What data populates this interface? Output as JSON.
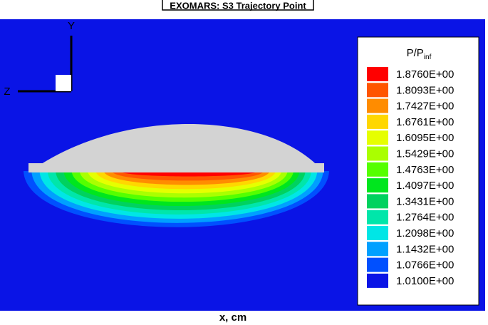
{
  "title": "EXOMARS: S3 Trajectory Point",
  "axes": {
    "y_label": "Y",
    "z_label": "Z",
    "x_label": "x, cm"
  },
  "legend": {
    "title": "P/P",
    "subscript": "inf",
    "levels": [
      {
        "label": "1.8760E+00",
        "color": "#ff0000"
      },
      {
        "label": "1.8093E+00",
        "color": "#ff5500"
      },
      {
        "label": "1.7427E+00",
        "color": "#ff8c00"
      },
      {
        "label": "1.6761E+00",
        "color": "#ffd700"
      },
      {
        "label": "1.6095E+00",
        "color": "#e6ff00"
      },
      {
        "label": "1.5429E+00",
        "color": "#aaff00"
      },
      {
        "label": "1.4763E+00",
        "color": "#55ff00"
      },
      {
        "label": "1.4097E+00",
        "color": "#00e61e"
      },
      {
        "label": "1.3431E+00",
        "color": "#00d25f"
      },
      {
        "label": "1.2764E+00",
        "color": "#00e6aa"
      },
      {
        "label": "1.2098E+00",
        "color": "#00e6e6"
      },
      {
        "label": "1.1432E+00",
        "color": "#00a0ff"
      },
      {
        "label": "1.0766E+00",
        "color": "#0050ff"
      },
      {
        "label": "1.0100E+00",
        "color": "#0a14e6"
      }
    ]
  }
}
